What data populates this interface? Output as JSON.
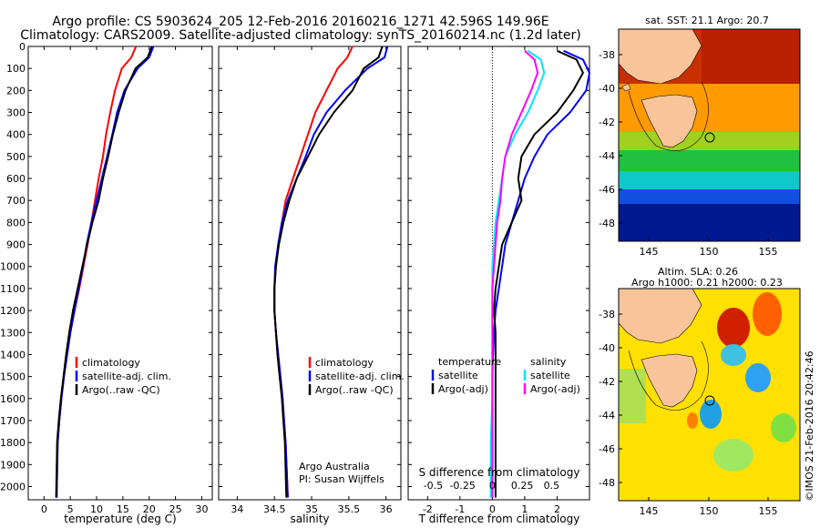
{
  "title": {
    "line1": "Argo profile: CS 5903624_205 12-Feb-2016 20160216_1271 42.596S 149.96E",
    "line2": "Climatology: CARS2009. Satellite-adjusted climatology: synTS_20160214.nc (1.2d later)"
  },
  "colors": {
    "climatology": "#ff0000",
    "satellite_adj": "#0000ff",
    "argo": "#000000",
    "sat_salinity": "#00e5ff",
    "argo_adj_salinity": "#ff00ff"
  },
  "chart_data": [
    {
      "id": "temperature",
      "type": "line",
      "xlabel": "temperature (deg C)",
      "ylabel": "",
      "xlim": [
        -3,
        32
      ],
      "ylim": [
        2060,
        0
      ],
      "xticks": [
        "0",
        "5",
        "10",
        "15",
        "20",
        "25",
        "30"
      ],
      "xtick_values": [
        0,
        5,
        10,
        15,
        20,
        25,
        30
      ],
      "yticks": [
        "0",
        "100",
        "200",
        "300",
        "400",
        "500",
        "600",
        "700",
        "800",
        "900",
        "1000",
        "1100",
        "1200",
        "1300",
        "1400",
        "1500",
        "1600",
        "1700",
        "1800",
        "1900",
        "2000"
      ],
      "legend": [
        "climatology",
        "satellite-adj. clim.",
        "Argo(..raw -QC)"
      ],
      "legend_position": "bottom-left",
      "series": [
        {
          "name": "climatology",
          "color_key": "climatology",
          "x": [
            17.5,
            16.6,
            14.8,
            13.5,
            12.6,
            11.8,
            11.2,
            10.4,
            9.7,
            9.0,
            8.3,
            7.5,
            6.7,
            5.8,
            5.0,
            4.4,
            3.8,
            3.3,
            2.9,
            2.6,
            2.4
          ],
          "y": [
            0,
            50,
            100,
            200,
            300,
            400,
            500,
            600,
            700,
            800,
            900,
            1000,
            1100,
            1200,
            1300,
            1400,
            1500,
            1600,
            1700,
            1800,
            2050
          ]
        },
        {
          "name": "satellite-adj. clim.",
          "color_key": "satellite_adj",
          "x": [
            20.8,
            20.0,
            17.8,
            15.3,
            13.9,
            13.0,
            12.0,
            11.0,
            10.0,
            9.0,
            8.1,
            7.4,
            6.6,
            5.8,
            5.0,
            4.4,
            3.8,
            3.3,
            2.9,
            2.6,
            2.4
          ],
          "y": [
            0,
            50,
            100,
            200,
            300,
            400,
            500,
            600,
            700,
            800,
            900,
            1000,
            1100,
            1200,
            1300,
            1400,
            1500,
            1600,
            1700,
            1800,
            2050
          ]
        },
        {
          "name": "Argo(..raw -QC)",
          "color_key": "argo",
          "x": [
            20.5,
            19.7,
            17.4,
            15.5,
            14.2,
            13.1,
            12.2,
            11.2,
            10.4,
            9.2,
            8.2,
            7.3,
            6.4,
            5.5,
            4.8,
            4.2,
            3.7,
            3.2,
            2.8,
            2.5,
            2.3
          ],
          "y": [
            0,
            50,
            100,
            200,
            300,
            400,
            500,
            600,
            700,
            800,
            900,
            1000,
            1100,
            1200,
            1300,
            1400,
            1500,
            1600,
            1700,
            1800,
            2050
          ]
        }
      ]
    },
    {
      "id": "salinity",
      "type": "line",
      "xlabel": "salinity",
      "ylabel": "",
      "xlim": [
        33.75,
        36.2
      ],
      "ylim": [
        2060,
        0
      ],
      "xticks": [
        "34",
        "34.5",
        "35",
        "35.5",
        "36"
      ],
      "xtick_values": [
        34,
        34.5,
        35,
        35.5,
        36
      ],
      "legend": [
        "climatology",
        "satellite-adj. clim.",
        "Argo(..raw -QC)"
      ],
      "legend_position": "bottom-right",
      "annotation": [
        "Argo Australia",
        "PI: Susan Wijffels"
      ],
      "series": [
        {
          "name": "climatology",
          "color_key": "climatology",
          "x": [
            35.55,
            35.48,
            35.35,
            35.2,
            35.05,
            34.95,
            34.85,
            34.75,
            34.65,
            34.6,
            34.55,
            34.52,
            34.5,
            34.5,
            34.52,
            34.55,
            34.58,
            34.61,
            34.63,
            34.65,
            34.68
          ],
          "y": [
            0,
            50,
            100,
            200,
            300,
            400,
            500,
            600,
            700,
            800,
            900,
            1000,
            1100,
            1200,
            1300,
            1400,
            1500,
            1600,
            1700,
            1800,
            2050
          ]
        },
        {
          "name": "satellite-adj. clim.",
          "color_key": "satellite_adj",
          "x": [
            36.02,
            35.98,
            35.75,
            35.45,
            35.2,
            35.03,
            34.92,
            34.8,
            34.68,
            34.6,
            34.55,
            34.51,
            34.5,
            34.5,
            34.52,
            34.55,
            34.58,
            34.61,
            34.63,
            34.65,
            34.68
          ],
          "y": [
            0,
            50,
            100,
            200,
            300,
            400,
            500,
            600,
            700,
            800,
            900,
            1000,
            1100,
            1200,
            1300,
            1400,
            1500,
            1600,
            1700,
            1800,
            2050
          ]
        },
        {
          "name": "Argo(..raw -QC)",
          "color_key": "argo",
          "x": [
            35.95,
            35.9,
            35.7,
            35.55,
            35.3,
            35.1,
            34.95,
            34.8,
            34.7,
            34.62,
            34.56,
            34.52,
            34.5,
            34.5,
            34.52,
            34.54,
            34.57,
            34.6,
            34.62,
            34.64,
            34.66
          ],
          "y": [
            0,
            50,
            100,
            200,
            300,
            400,
            500,
            600,
            700,
            800,
            900,
            1000,
            1100,
            1200,
            1300,
            1400,
            1500,
            1600,
            1700,
            1800,
            2050
          ]
        }
      ]
    },
    {
      "id": "difference",
      "type": "line",
      "xlabel": "T difference from climatology",
      "xlabel_top": "S difference from climatology",
      "xlim": [
        -2.6,
        3.0
      ],
      "ylim": [
        2060,
        0
      ],
      "xticks": [
        "-2",
        "-1",
        "0",
        "1",
        "2"
      ],
      "xtick_values": [
        -2,
        -1,
        0,
        1,
        2
      ],
      "sticks": [
        "-0.5",
        "-0.25",
        "0",
        "0.25",
        "0.5"
      ],
      "stick_values": [
        -1.83,
        -0.92,
        0,
        0.92,
        1.83
      ],
      "legend_temperature": {
        "title": "temperature",
        "items": [
          "satellite",
          "Argo(-adj)"
        ]
      },
      "legend_salinity": {
        "title": "salinity",
        "items": [
          "satellite",
          "Argo(-adj)"
        ]
      },
      "series": [
        {
          "name": "satellite",
          "color_key": "satellite_adj",
          "x": [
            2.2,
            2.8,
            3.0,
            2.9,
            2.4,
            1.7,
            1.3,
            1.0,
            0.8,
            0.6,
            0.4,
            0.3,
            0.2,
            0.1,
            0.05,
            0.02,
            0.0,
            0.0,
            0.0,
            0.0
          ],
          "y": [
            20,
            60,
            120,
            200,
            300,
            400,
            500,
            600,
            700,
            800,
            900,
            1000,
            1100,
            1200,
            1300,
            1400,
            1500,
            1600,
            1800,
            2050
          ]
        },
        {
          "name": "Argo(-adj)",
          "color_key": "argo",
          "x": [
            2.0,
            2.6,
            2.8,
            2.5,
            2.0,
            1.3,
            0.9,
            0.8,
            0.9,
            0.6,
            0.3,
            0.2,
            0.1,
            0.05,
            0.1,
            0.1,
            0.1,
            0.1,
            0.1,
            0.1
          ],
          "y": [
            20,
            60,
            120,
            200,
            300,
            400,
            500,
            600,
            700,
            800,
            900,
            1000,
            1100,
            1200,
            1300,
            1400,
            1500,
            1600,
            1800,
            2050
          ]
        },
        {
          "name": "satellite",
          "color_key": "sat_salinity",
          "x": [
            1.1,
            1.5,
            1.6,
            1.4,
            1.1,
            0.7,
            0.4,
            0.3,
            0.2,
            0.1,
            0.05,
            0.0,
            0.0,
            0.0,
            0.0,
            0.0,
            0.0,
            0.0,
            -0.05,
            -0.05
          ],
          "y": [
            20,
            60,
            120,
            200,
            300,
            400,
            500,
            600,
            700,
            800,
            900,
            1000,
            1100,
            1200,
            1300,
            1400,
            1500,
            1600,
            1800,
            2050
          ]
        },
        {
          "name": "Argo(-adj)",
          "color_key": "argo_adj_salinity",
          "x": [
            1.0,
            1.3,
            1.4,
            1.2,
            0.9,
            0.6,
            0.4,
            0.3,
            0.25,
            0.15,
            0.1,
            0.05,
            0.0,
            0.0,
            0.0,
            0.0,
            0.0,
            0.0,
            0.0,
            0.0
          ],
          "y": [
            20,
            60,
            120,
            200,
            300,
            400,
            500,
            600,
            700,
            800,
            900,
            1000,
            1100,
            1200,
            1300,
            1400,
            1500,
            1600,
            1800,
            2050
          ]
        }
      ]
    }
  ],
  "maps": {
    "sst": {
      "title": "sat. SST: 21.1  Argo: 20.7",
      "xticks": [
        "145",
        "150",
        "155"
      ],
      "yticks": [
        "-38",
        "-40",
        "-42",
        "-44",
        "-46",
        "-48"
      ]
    },
    "sla": {
      "title_line1": "Altim. SLA: 0.26",
      "title_line2": "Argo h1000: 0.21 h2000: 0.23",
      "xticks": [
        "145",
        "150",
        "155"
      ],
      "yticks": [
        "-38",
        "-40",
        "-42",
        "-44",
        "-46",
        "-48"
      ]
    }
  },
  "footer": "©IMOS 21-Feb-2016 20:42:46"
}
